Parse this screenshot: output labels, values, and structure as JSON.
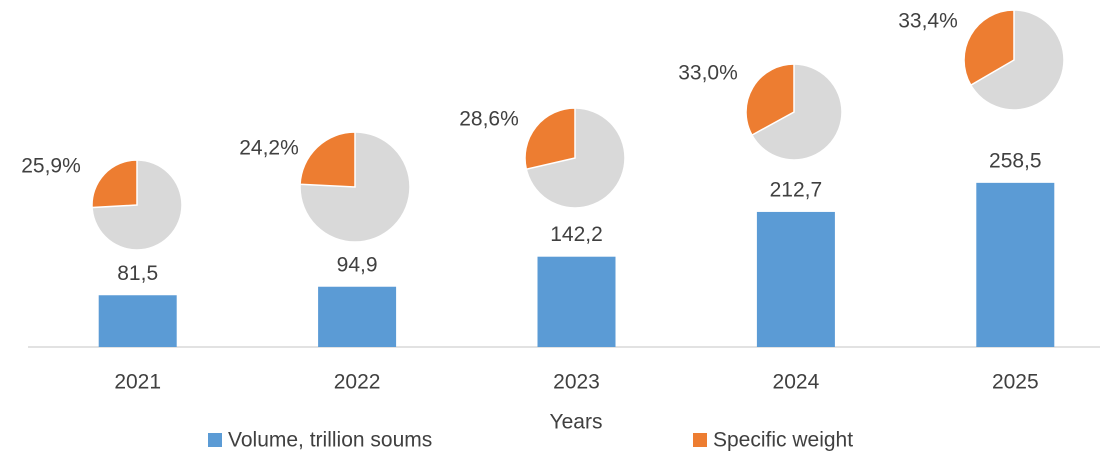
{
  "chart_data": {
    "type": "bar",
    "x_label": "Years",
    "categories": [
      "2021",
      "2022",
      "2023",
      "2024",
      "2025"
    ],
    "series": [
      {
        "name": "Volume, trillion soums",
        "type": "bar",
        "color": "#5b9bd5",
        "values": [
          81.5,
          94.9,
          142.2,
          212.7,
          258.5
        ],
        "value_labels": [
          "81,5",
          "94,9",
          "142,2",
          "212,7",
          "258,5"
        ]
      },
      {
        "name": "Specific weight",
        "type": "pie",
        "color": "#ed7d31",
        "remainder_color": "#d9d9d9",
        "values": [
          25.9,
          24.2,
          28.6,
          33.0,
          33.4
        ],
        "value_labels": [
          "25,9%",
          "24,2%",
          "28,6%",
          "33,0%",
          "33,4%"
        ]
      }
    ]
  }
}
